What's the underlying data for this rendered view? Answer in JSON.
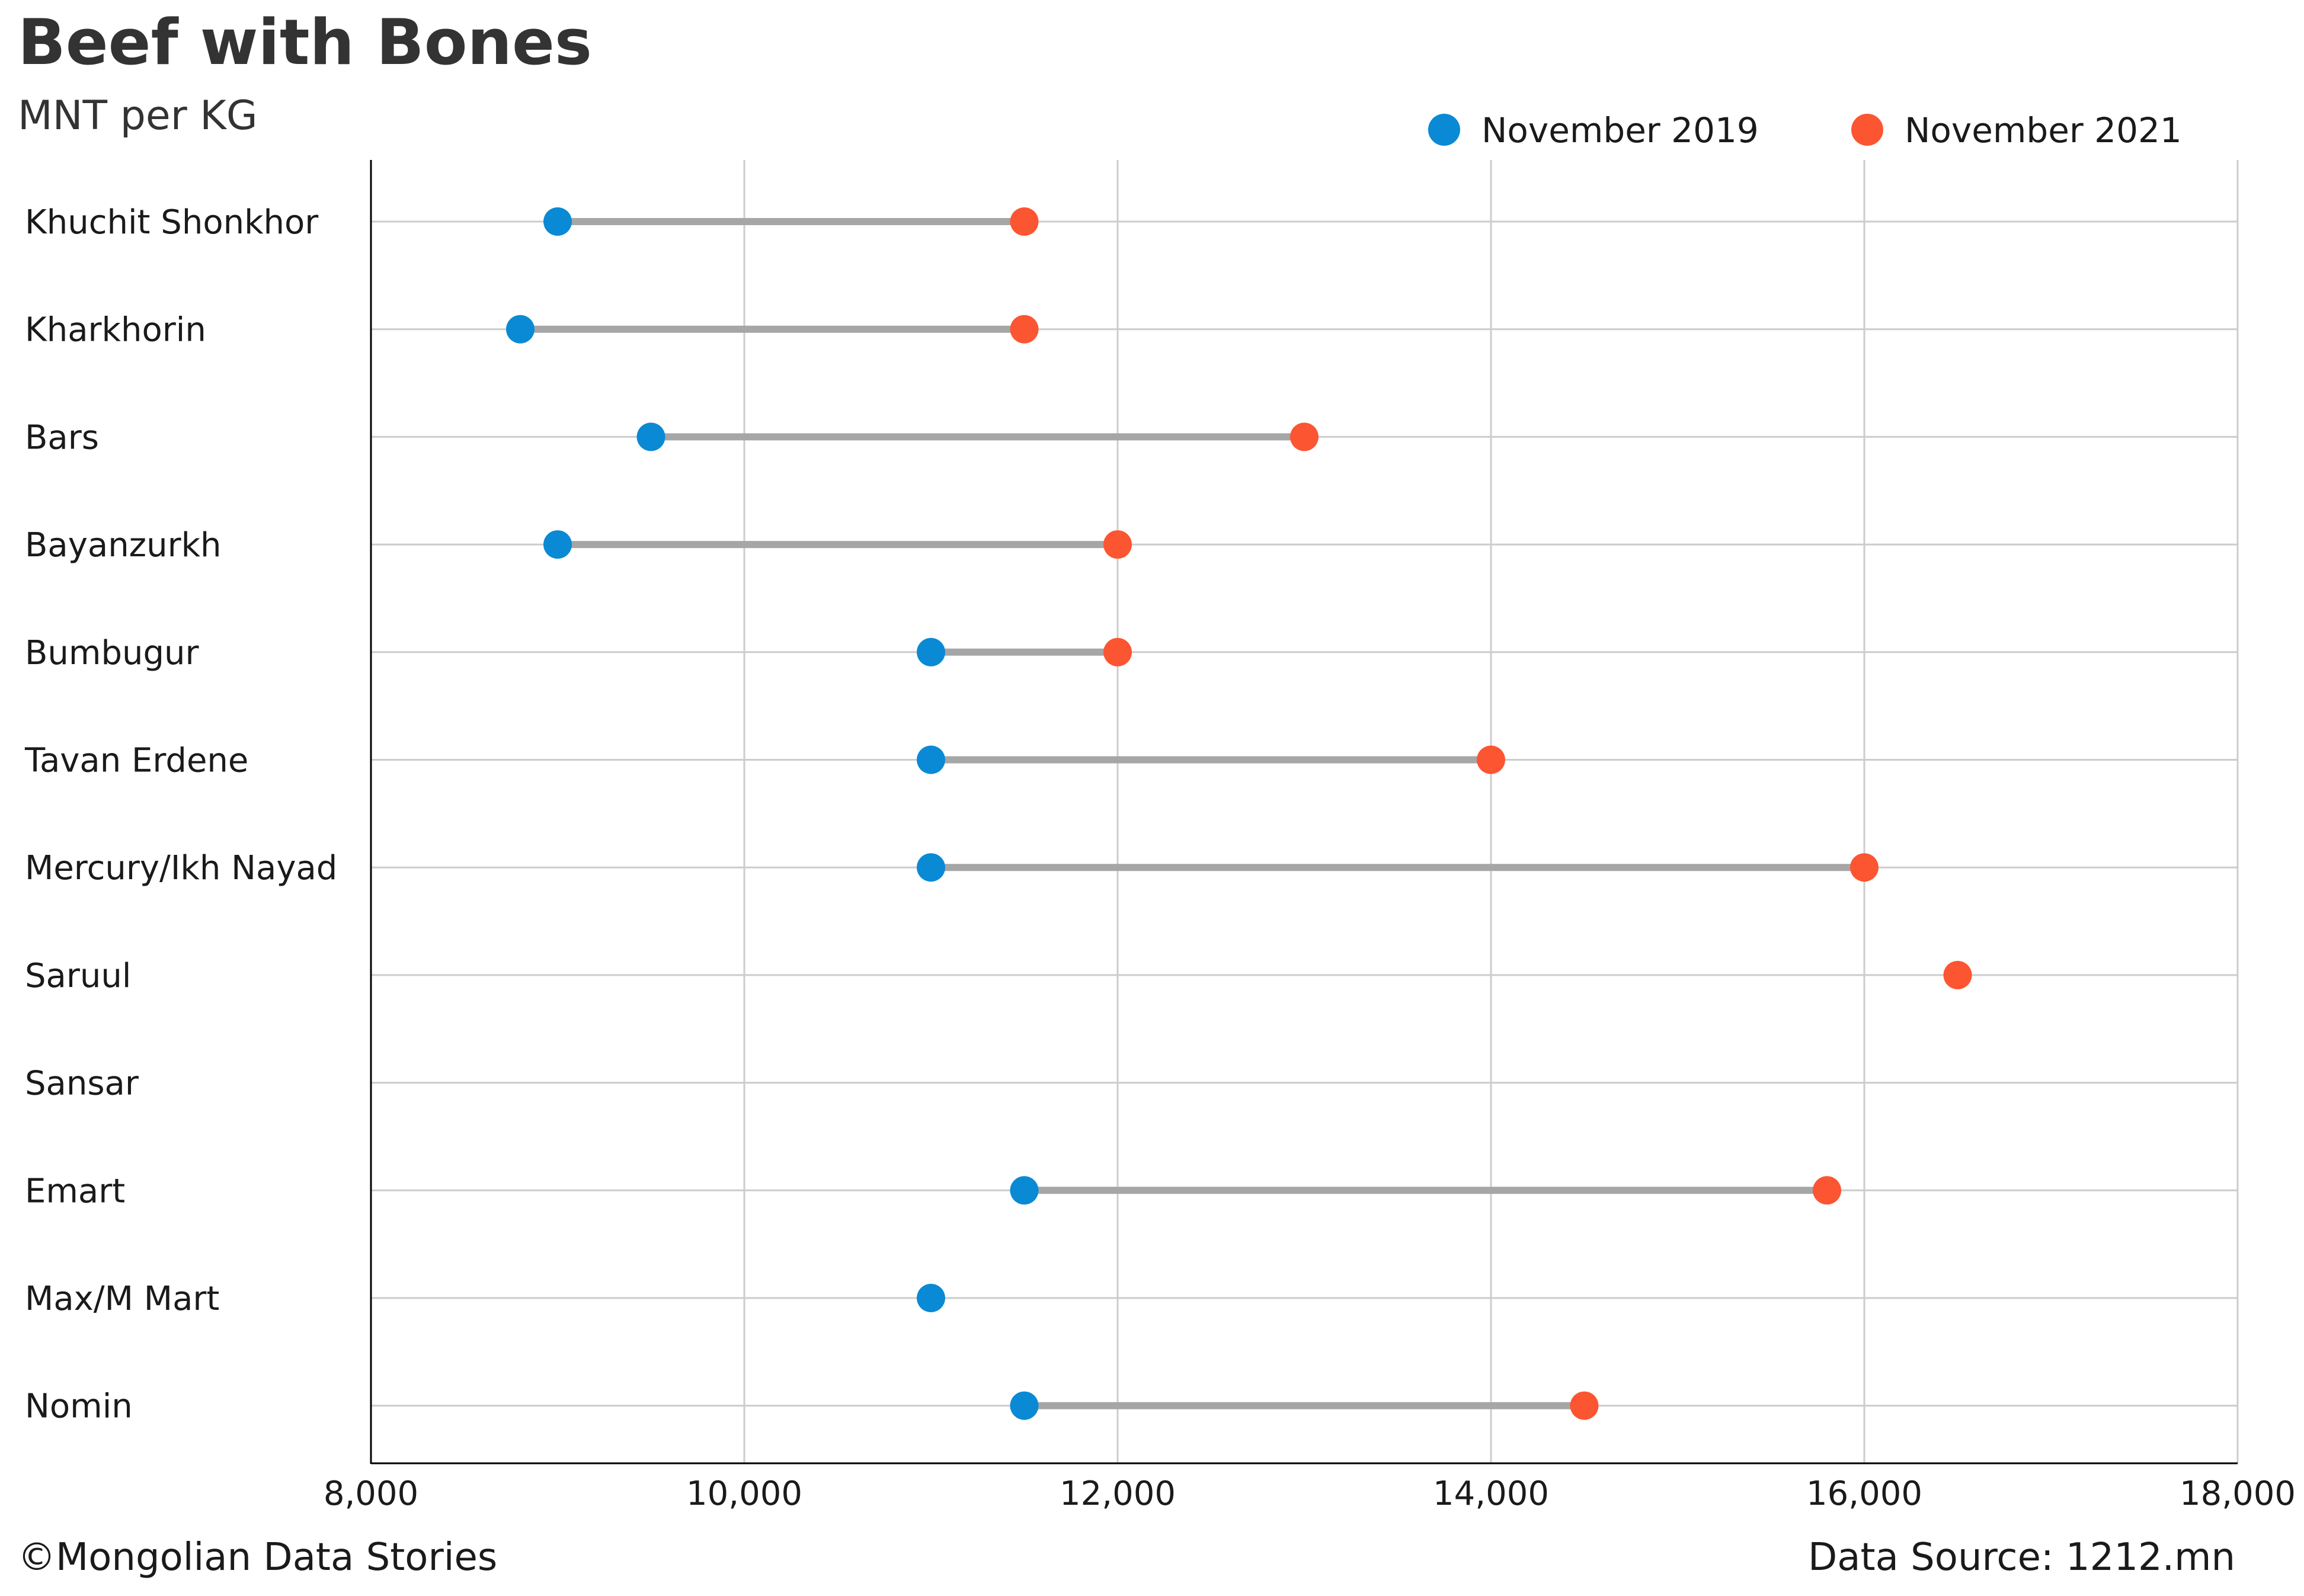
{
  "header": {
    "title": "Beef with Bones",
    "subtitle": "MNT per KG"
  },
  "legend": {
    "items": [
      {
        "label": "November 2019",
        "color": "#0a8ad4"
      },
      {
        "label": "November 2021",
        "color": "#fc5532"
      }
    ]
  },
  "footer": {
    "credit": "©Mongolian Data Stories",
    "source": "Data Source: 1212.mn"
  },
  "colors": {
    "nov2019": "#0a8ad4",
    "nov2021": "#fc5532",
    "connector": "#a6a6a6",
    "grid": "#cccccc"
  },
  "chart_data": {
    "type": "dumbbell",
    "title": "Beef with Bones",
    "subtitle": "MNT per KG",
    "xlabel": "",
    "ylabel": "",
    "xlim": [
      8000,
      18000
    ],
    "xticks": [
      8000,
      10000,
      12000,
      14000,
      16000,
      18000
    ],
    "xtick_labels": [
      "8,000",
      "10,000",
      "12,000",
      "14,000",
      "16,000",
      "18,000"
    ],
    "grid": true,
    "legend_position": "top-right",
    "categories": [
      "Khuchit Shonkhor",
      "Kharkhorin",
      "Bars",
      "Bayanzurkh",
      "Bumbugur",
      "Tavan Erdene",
      "Mercury/Ikh Nayad",
      "Saruul",
      "Sansar",
      "Emart",
      "Max/M Mart",
      "Nomin"
    ],
    "series": [
      {
        "name": "November 2019",
        "values": [
          9000,
          8800,
          9500,
          9000,
          11000,
          11000,
          11000,
          null,
          null,
          11500,
          11000,
          11500
        ]
      },
      {
        "name": "November 2021",
        "values": [
          11500,
          11500,
          13000,
          12000,
          12000,
          14000,
          16000,
          16500,
          null,
          15800,
          null,
          14500
        ]
      }
    ]
  }
}
